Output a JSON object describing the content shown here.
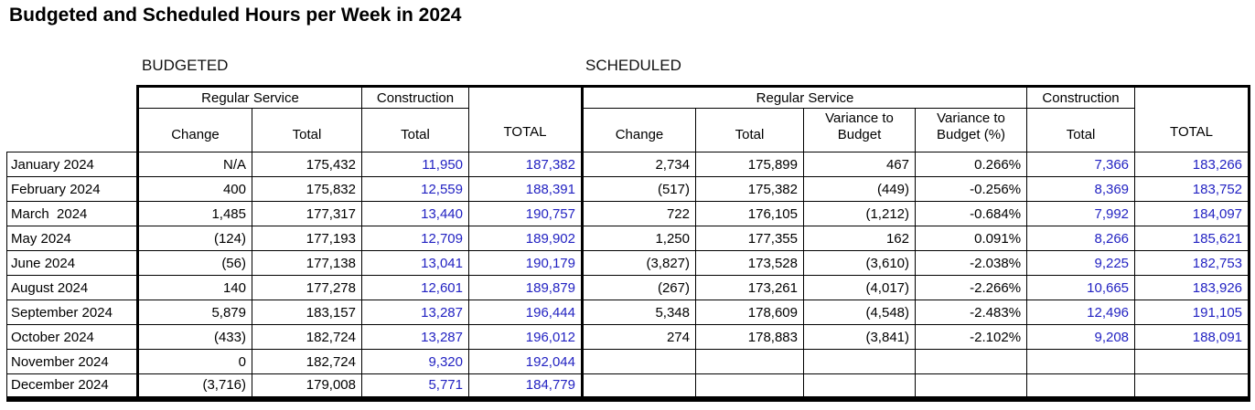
{
  "title": "Budgeted and Scheduled Hours per Week in 2024",
  "sections": {
    "budgeted_label": "BUDGETED",
    "scheduled_label": "SCHEDULED"
  },
  "headers": {
    "regular_service": "Regular Service",
    "construction": "Construction",
    "change": "Change",
    "total": "Total",
    "variance_to_budget": "Variance to Budget",
    "variance_to_budget_pct": "Variance to Budget (%)",
    "grand_total": "TOTAL"
  },
  "colors": {
    "accent_blue": "#2222C2",
    "text_black": "#000000"
  },
  "rows": [
    {
      "month": "January 2024",
      "budgeted": {
        "change": "N/A",
        "total": "175,432",
        "construction_total": "11,950",
        "total_all": "187,382"
      },
      "scheduled": {
        "change": "2,734",
        "total": "175,899",
        "variance": "467",
        "variance_pct": "0.266%",
        "construction_total": "7,366",
        "total_all": "183,266"
      }
    },
    {
      "month": "February 2024",
      "budgeted": {
        "change": "400",
        "total": "175,832",
        "construction_total": "12,559",
        "total_all": "188,391"
      },
      "scheduled": {
        "change": "(517)",
        "total": "175,382",
        "variance": "(449)",
        "variance_pct": "-0.256%",
        "construction_total": "8,369",
        "total_all": "183,752"
      }
    },
    {
      "month": "March  2024",
      "budgeted": {
        "change": "1,485",
        "total": "177,317",
        "construction_total": "13,440",
        "total_all": "190,757"
      },
      "scheduled": {
        "change": "722",
        "total": "176,105",
        "variance": "(1,212)",
        "variance_pct": "-0.684%",
        "construction_total": "7,992",
        "total_all": "184,097"
      }
    },
    {
      "month": "May 2024",
      "budgeted": {
        "change": "(124)",
        "total": "177,193",
        "construction_total": "12,709",
        "total_all": "189,902"
      },
      "scheduled": {
        "change": "1,250",
        "total": "177,355",
        "variance": "162",
        "variance_pct": "0.091%",
        "construction_total": "8,266",
        "total_all": "185,621"
      }
    },
    {
      "month": "June 2024",
      "budgeted": {
        "change": "(56)",
        "total": "177,138",
        "construction_total": "13,041",
        "total_all": "190,179"
      },
      "scheduled": {
        "change": "(3,827)",
        "total": "173,528",
        "variance": "(3,610)",
        "variance_pct": "-2.038%",
        "construction_total": "9,225",
        "total_all": "182,753"
      }
    },
    {
      "month": "August 2024",
      "budgeted": {
        "change": "140",
        "total": "177,278",
        "construction_total": "12,601",
        "total_all": "189,879"
      },
      "scheduled": {
        "change": "(267)",
        "total": "173,261",
        "variance": "(4,017)",
        "variance_pct": "-2.266%",
        "construction_total": "10,665",
        "total_all": "183,926"
      }
    },
    {
      "month": "September 2024",
      "budgeted": {
        "change": "5,879",
        "total": "183,157",
        "construction_total": "13,287",
        "total_all": "196,444"
      },
      "scheduled": {
        "change": "5,348",
        "total": "178,609",
        "variance": "(4,548)",
        "variance_pct": "-2.483%",
        "construction_total": "12,496",
        "total_all": "191,105"
      }
    },
    {
      "month": "October 2024",
      "budgeted": {
        "change": "(433)",
        "total": "182,724",
        "construction_total": "13,287",
        "total_all": "196,012"
      },
      "scheduled": {
        "change": "274",
        "total": "178,883",
        "variance": "(3,841)",
        "variance_pct": "-2.102%",
        "construction_total": "9,208",
        "total_all": "188,091"
      }
    },
    {
      "month": "November 2024",
      "budgeted": {
        "change": "0",
        "total": "182,724",
        "construction_total": "9,320",
        "total_all": "192,044"
      },
      "scheduled": {
        "change": "",
        "total": "",
        "variance": "",
        "variance_pct": "",
        "construction_total": "",
        "total_all": ""
      }
    },
    {
      "month": "December 2024",
      "budgeted": {
        "change": "(3,716)",
        "total": "179,008",
        "construction_total": "5,771",
        "total_all": "184,779"
      },
      "scheduled": {
        "change": "",
        "total": "",
        "variance": "",
        "variance_pct": "",
        "construction_total": "",
        "total_all": ""
      }
    }
  ]
}
